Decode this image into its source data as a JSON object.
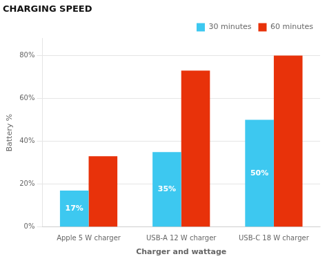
{
  "chart_data": {
    "type": "bar",
    "title": "CHARGING SPEED",
    "x_label": "Charger and wattage",
    "y_label": "Battery %",
    "categories": [
      "Apple 5 W charger",
      "USB-A 12 W charger",
      "USB-C 18 W charger"
    ],
    "series": [
      {
        "name": "30 minutes",
        "color": "#3DC8F0",
        "values": [
          17,
          35,
          50
        ],
        "data_labels": true,
        "value_labels": [
          "17%",
          "35%",
          "50%"
        ]
      },
      {
        "name": "60 minutes",
        "color": "#E8320A",
        "values": [
          33,
          73,
          80
        ],
        "data_labels": false
      }
    ],
    "ylim": [
      0,
      88
    ],
    "yticks": [
      {
        "value": 0,
        "label": "0%"
      },
      {
        "value": 20,
        "label": "20%"
      },
      {
        "value": 40,
        "label": "40%"
      },
      {
        "value": 60,
        "label": "60%"
      },
      {
        "value": 80,
        "label": "80%"
      }
    ],
    "grid": true,
    "legend": "upper right"
  }
}
